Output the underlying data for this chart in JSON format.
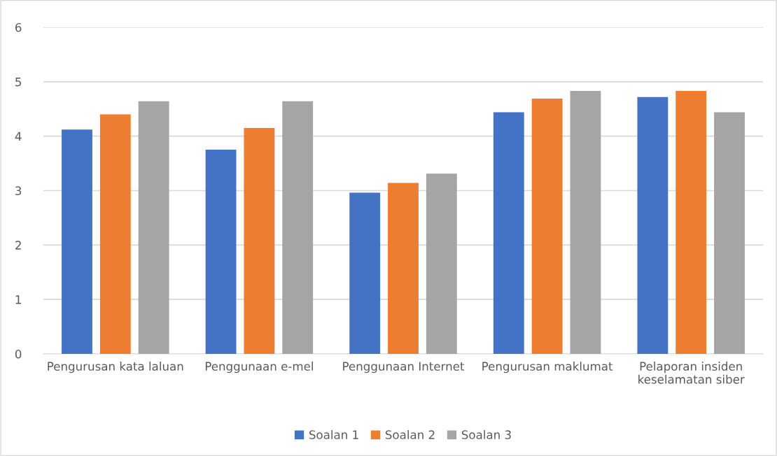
{
  "chart_data": {
    "type": "bar",
    "categories": [
      "Pengurusan kata laluan",
      "Penggunaan e-mel",
      "Penggunaan Internet",
      "Pengurusan maklumat",
      "Pelaporan insiden keselamatan siber"
    ],
    "series": [
      {
        "name": "Soalan 1",
        "color": "#4472c4",
        "values": [
          4.12,
          3.75,
          2.96,
          4.44,
          4.72
        ]
      },
      {
        "name": "Soalan 2",
        "color": "#ed7d31",
        "values": [
          4.4,
          4.15,
          3.14,
          4.69,
          4.83
        ]
      },
      {
        "name": "Soalan 3",
        "color": "#a5a5a5",
        "values": [
          4.64,
          4.64,
          3.31,
          4.83,
          4.44
        ]
      }
    ],
    "ylim": [
      0,
      6
    ],
    "yticks": [
      0,
      1,
      2,
      3,
      4,
      5,
      6
    ],
    "grid": "y",
    "legend": "bottom"
  }
}
